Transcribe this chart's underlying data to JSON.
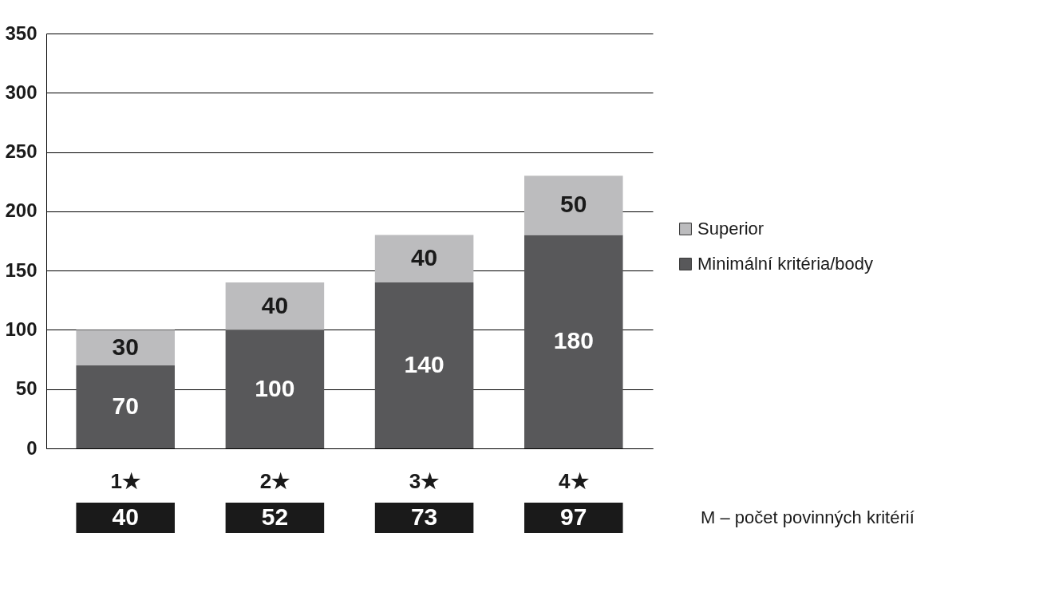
{
  "chart_data": {
    "type": "bar",
    "stacked": true,
    "categories": [
      "1★",
      "2★",
      "3★",
      "4★"
    ],
    "series": [
      {
        "name": "Minimální kritéria/body",
        "color": "#58585a",
        "values": [
          70,
          100,
          140,
          180
        ]
      },
      {
        "name": "Superior",
        "color": "#bcbcbe",
        "values": [
          30,
          40,
          40,
          50
        ]
      }
    ],
    "ylim": [
      0,
      350
    ],
    "yticks": [
      0,
      50,
      100,
      150,
      200,
      250,
      300,
      350
    ],
    "grid": "y",
    "legend": "right",
    "data_labels": true,
    "annotations": [
      "40",
      "52",
      "73",
      "97",
      "M – počet povinných kritérií"
    ]
  }
}
